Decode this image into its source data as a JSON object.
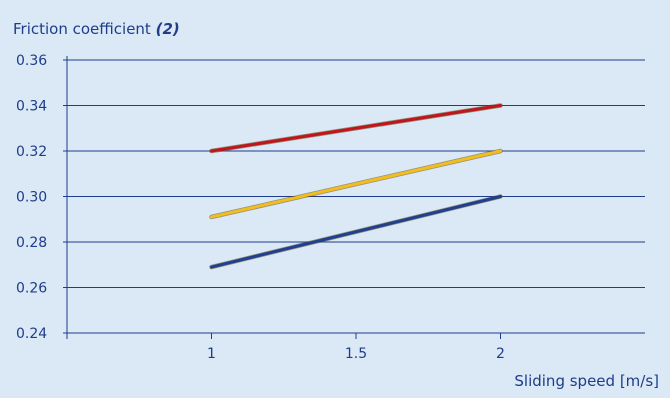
{
  "chart_data": {
    "type": "line",
    "ylabel": "Friction coefficient",
    "ylabel_note": "(2)",
    "xlabel": "Sliding speed [m/s]",
    "x_ticks": [
      "1",
      "1.5",
      "2"
    ],
    "y_ticks": [
      "0.36",
      "0.34",
      "0.32",
      "0.30",
      "0.28",
      "0.26",
      "0.24"
    ],
    "xlim": [
      0.5,
      2.5
    ],
    "ylim": [
      0.24,
      0.36
    ],
    "grid": true,
    "series": [
      {
        "color": "#c0151b",
        "x": [
          1,
          2
        ],
        "y": [
          0.32,
          0.34
        ]
      },
      {
        "color": "#f2bd1d",
        "x": [
          1,
          2
        ],
        "y": [
          0.291,
          0.32
        ]
      },
      {
        "color": "#1f3f8f",
        "x": [
          1,
          2
        ],
        "y": [
          0.269,
          0.3
        ]
      }
    ],
    "colors": {
      "background": "#dbe8f5",
      "grid": "#1e3d8a",
      "text": "#1e3d8a"
    }
  }
}
